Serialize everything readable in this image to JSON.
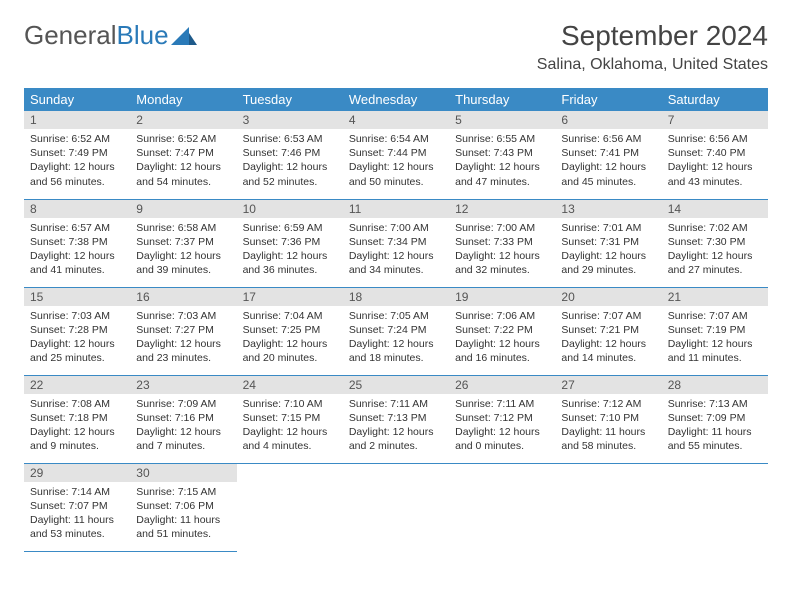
{
  "brand": {
    "part1": "General",
    "part2": "Blue"
  },
  "header": {
    "month_title": "September 2024",
    "location": "Salina, Oklahoma, United States"
  },
  "calendar": {
    "type": "table",
    "header_bg": "#3a8ac5",
    "header_fg": "#ffffff",
    "daynum_bg": "#e3e3e3",
    "border_color": "#3a8ac5",
    "background_color": "#ffffff",
    "day_labels": [
      "Sunday",
      "Monday",
      "Tuesday",
      "Wednesday",
      "Thursday",
      "Friday",
      "Saturday"
    ],
    "days": [
      {
        "n": 1,
        "sunrise": "6:52 AM",
        "sunset": "7:49 PM",
        "daylight": "12 hours and 56 minutes."
      },
      {
        "n": 2,
        "sunrise": "6:52 AM",
        "sunset": "7:47 PM",
        "daylight": "12 hours and 54 minutes."
      },
      {
        "n": 3,
        "sunrise": "6:53 AM",
        "sunset": "7:46 PM",
        "daylight": "12 hours and 52 minutes."
      },
      {
        "n": 4,
        "sunrise": "6:54 AM",
        "sunset": "7:44 PM",
        "daylight": "12 hours and 50 minutes."
      },
      {
        "n": 5,
        "sunrise": "6:55 AM",
        "sunset": "7:43 PM",
        "daylight": "12 hours and 47 minutes."
      },
      {
        "n": 6,
        "sunrise": "6:56 AM",
        "sunset": "7:41 PM",
        "daylight": "12 hours and 45 minutes."
      },
      {
        "n": 7,
        "sunrise": "6:56 AM",
        "sunset": "7:40 PM",
        "daylight": "12 hours and 43 minutes."
      },
      {
        "n": 8,
        "sunrise": "6:57 AM",
        "sunset": "7:38 PM",
        "daylight": "12 hours and 41 minutes."
      },
      {
        "n": 9,
        "sunrise": "6:58 AM",
        "sunset": "7:37 PM",
        "daylight": "12 hours and 39 minutes."
      },
      {
        "n": 10,
        "sunrise": "6:59 AM",
        "sunset": "7:36 PM",
        "daylight": "12 hours and 36 minutes."
      },
      {
        "n": 11,
        "sunrise": "7:00 AM",
        "sunset": "7:34 PM",
        "daylight": "12 hours and 34 minutes."
      },
      {
        "n": 12,
        "sunrise": "7:00 AM",
        "sunset": "7:33 PM",
        "daylight": "12 hours and 32 minutes."
      },
      {
        "n": 13,
        "sunrise": "7:01 AM",
        "sunset": "7:31 PM",
        "daylight": "12 hours and 29 minutes."
      },
      {
        "n": 14,
        "sunrise": "7:02 AM",
        "sunset": "7:30 PM",
        "daylight": "12 hours and 27 minutes."
      },
      {
        "n": 15,
        "sunrise": "7:03 AM",
        "sunset": "7:28 PM",
        "daylight": "12 hours and 25 minutes."
      },
      {
        "n": 16,
        "sunrise": "7:03 AM",
        "sunset": "7:27 PM",
        "daylight": "12 hours and 23 minutes."
      },
      {
        "n": 17,
        "sunrise": "7:04 AM",
        "sunset": "7:25 PM",
        "daylight": "12 hours and 20 minutes."
      },
      {
        "n": 18,
        "sunrise": "7:05 AM",
        "sunset": "7:24 PM",
        "daylight": "12 hours and 18 minutes."
      },
      {
        "n": 19,
        "sunrise": "7:06 AM",
        "sunset": "7:22 PM",
        "daylight": "12 hours and 16 minutes."
      },
      {
        "n": 20,
        "sunrise": "7:07 AM",
        "sunset": "7:21 PM",
        "daylight": "12 hours and 14 minutes."
      },
      {
        "n": 21,
        "sunrise": "7:07 AM",
        "sunset": "7:19 PM",
        "daylight": "12 hours and 11 minutes."
      },
      {
        "n": 22,
        "sunrise": "7:08 AM",
        "sunset": "7:18 PM",
        "daylight": "12 hours and 9 minutes."
      },
      {
        "n": 23,
        "sunrise": "7:09 AM",
        "sunset": "7:16 PM",
        "daylight": "12 hours and 7 minutes."
      },
      {
        "n": 24,
        "sunrise": "7:10 AM",
        "sunset": "7:15 PM",
        "daylight": "12 hours and 4 minutes."
      },
      {
        "n": 25,
        "sunrise": "7:11 AM",
        "sunset": "7:13 PM",
        "daylight": "12 hours and 2 minutes."
      },
      {
        "n": 26,
        "sunrise": "7:11 AM",
        "sunset": "7:12 PM",
        "daylight": "12 hours and 0 minutes."
      },
      {
        "n": 27,
        "sunrise": "7:12 AM",
        "sunset": "7:10 PM",
        "daylight": "11 hours and 58 minutes."
      },
      {
        "n": 28,
        "sunrise": "7:13 AM",
        "sunset": "7:09 PM",
        "daylight": "11 hours and 55 minutes."
      },
      {
        "n": 29,
        "sunrise": "7:14 AM",
        "sunset": "7:07 PM",
        "daylight": "11 hours and 53 minutes."
      },
      {
        "n": 30,
        "sunrise": "7:15 AM",
        "sunset": "7:06 PM",
        "daylight": "11 hours and 51 minutes."
      }
    ],
    "labels": {
      "sunrise": "Sunrise:",
      "sunset": "Sunset:",
      "daylight": "Daylight:"
    }
  }
}
